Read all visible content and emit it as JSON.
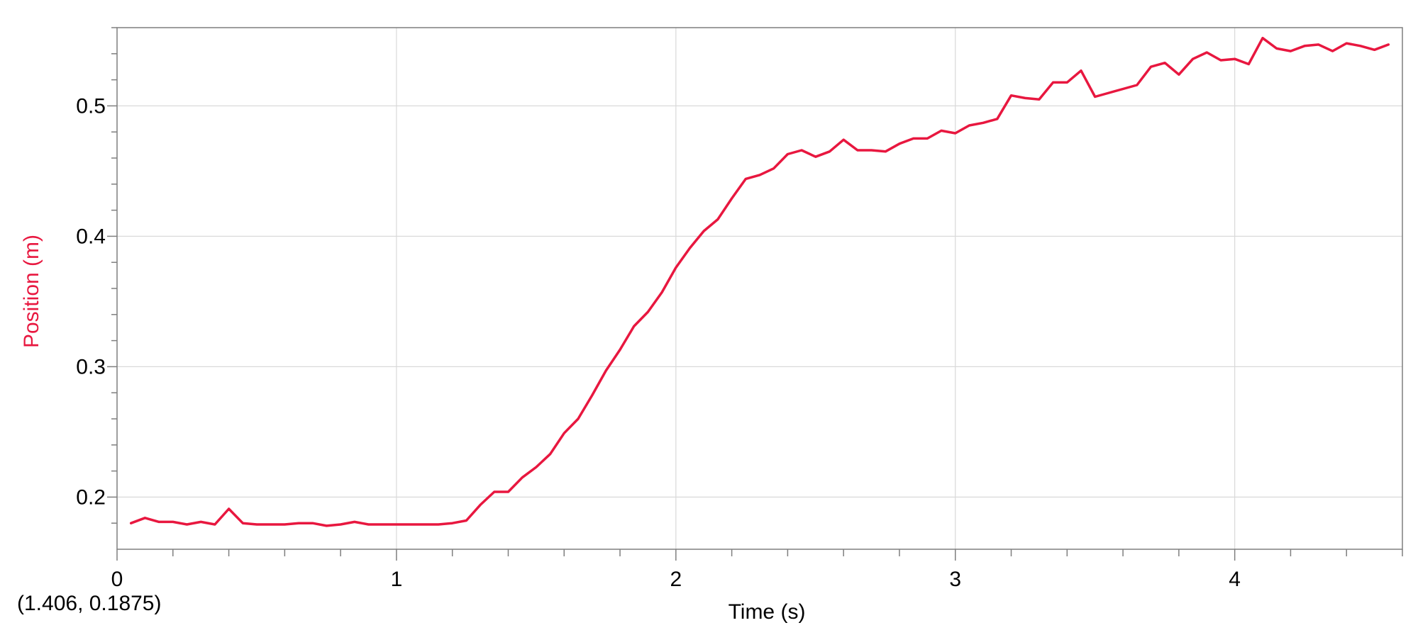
{
  "colors": {
    "series": "#e8173f",
    "ylabel": "#e8173f",
    "grid": "#d9d9d9",
    "axis": "#7f7f7f",
    "text": "#000000"
  },
  "readout": "(1.406, 0.1875)",
  "chart_data": {
    "type": "line",
    "title": "",
    "xlabel": "Time (s)",
    "ylabel": "Position (m)",
    "xlim": [
      0,
      4.6
    ],
    "ylim": [
      0.16,
      0.56
    ],
    "x_ticks": [
      0,
      1,
      2,
      3,
      4
    ],
    "x_tick_labels": [
      "0",
      "1",
      "2",
      "3",
      "4"
    ],
    "y_ticks": [
      0.2,
      0.3,
      0.4,
      0.5
    ],
    "y_tick_labels": [
      "0.2",
      "0.3",
      "0.4",
      "0.5"
    ],
    "grid": true,
    "legend": "none",
    "series": [
      {
        "x": [
          0.05,
          0.1,
          0.15,
          0.2,
          0.25,
          0.3,
          0.35,
          0.4,
          0.45,
          0.5,
          0.55,
          0.6,
          0.65,
          0.7,
          0.75,
          0.8,
          0.85,
          0.9,
          0.95,
          1.0,
          1.05,
          1.1,
          1.15,
          1.2,
          1.25,
          1.3,
          1.35,
          1.4,
          1.45,
          1.5,
          1.55,
          1.6,
          1.65,
          1.7,
          1.75,
          1.8,
          1.85,
          1.9,
          1.95,
          2.0,
          2.05,
          2.1,
          2.15,
          2.2,
          2.25,
          2.3,
          2.35,
          2.4,
          2.45,
          2.5,
          2.55,
          2.6,
          2.65,
          2.7,
          2.75,
          2.8,
          2.85,
          2.9,
          2.95,
          3.0,
          3.05,
          3.1,
          3.15,
          3.2,
          3.25,
          3.3,
          3.35,
          3.4,
          3.45,
          3.5,
          3.55,
          3.6,
          3.65,
          3.7,
          3.75,
          3.8,
          3.85,
          3.9,
          3.95,
          4.0,
          4.05,
          4.1,
          4.15,
          4.2,
          4.25,
          4.3,
          4.35,
          4.4,
          4.45,
          4.5,
          4.55
        ],
        "y": [
          0.18,
          0.184,
          0.181,
          0.181,
          0.179,
          0.181,
          0.179,
          0.191,
          0.18,
          0.179,
          0.179,
          0.179,
          0.18,
          0.18,
          0.178,
          0.179,
          0.181,
          0.179,
          0.179,
          0.179,
          0.179,
          0.179,
          0.179,
          0.18,
          0.182,
          0.194,
          0.204,
          0.204,
          0.215,
          0.223,
          0.233,
          0.249,
          0.26,
          0.278,
          0.297,
          0.313,
          0.331,
          0.342,
          0.357,
          0.376,
          0.391,
          0.404,
          0.413,
          0.429,
          0.444,
          0.447,
          0.452,
          0.463,
          0.466,
          0.461,
          0.465,
          0.474,
          0.466,
          0.466,
          0.465,
          0.471,
          0.475,
          0.475,
          0.481,
          0.479,
          0.485,
          0.487,
          0.49,
          0.508,
          0.506,
          0.505,
          0.518,
          0.518,
          0.527,
          0.507,
          0.51,
          0.513,
          0.516,
          0.53,
          0.533,
          0.524,
          0.536,
          0.541,
          0.535,
          0.536,
          0.532,
          0.552,
          0.544,
          0.542,
          0.546,
          0.547,
          0.542,
          0.548,
          0.546,
          0.543,
          0.547
        ]
      }
    ]
  }
}
